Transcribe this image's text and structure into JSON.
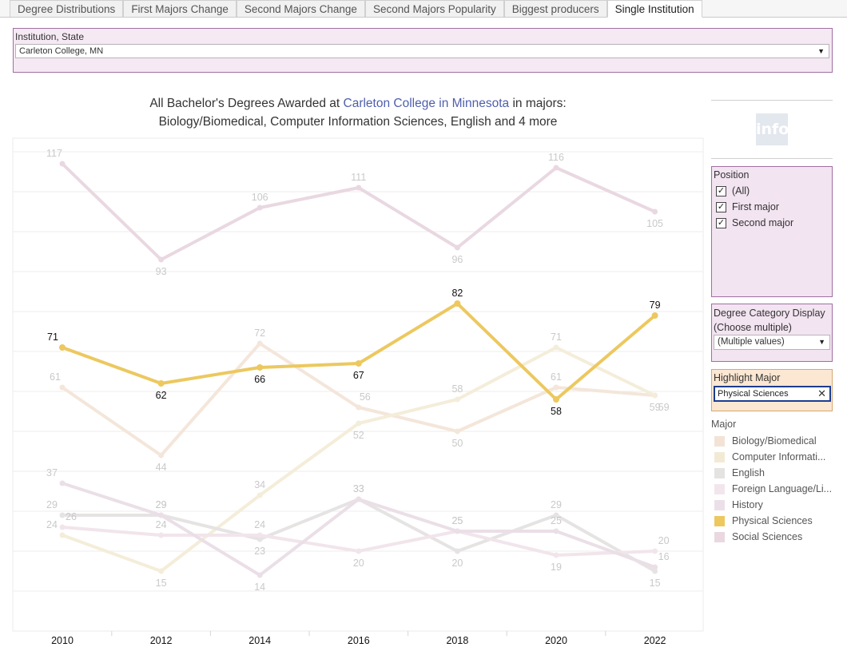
{
  "tabs": [
    {
      "label": "Degree Distributions",
      "active": false
    },
    {
      "label": "First Majors Change",
      "active": false
    },
    {
      "label": "Second Majors Change",
      "active": false
    },
    {
      "label": "Second Majors Popularity",
      "active": false
    },
    {
      "label": "Biggest producers",
      "active": false
    },
    {
      "label": "Single Institution",
      "active": true
    }
  ],
  "institution_filter": {
    "title": "Institution, State",
    "value": "Carleton College, MN"
  },
  "title": {
    "line1_prefix": "All Bachelor's Degrees Awarded at",
    "line1_highlight": "Carleton College in Minnesota",
    "line1_suffix": "in majors:",
    "line2": "Biology/Biomedical, Computer Information Sciences, English and 4 more"
  },
  "info_button": "info",
  "position_filter": {
    "title": "Position",
    "options": [
      {
        "label": "(All)",
        "checked": true
      },
      {
        "label": "First major",
        "checked": true
      },
      {
        "label": "Second major",
        "checked": true
      }
    ]
  },
  "degree_category_filter": {
    "title": "Degree Category Display (Choose multiple)",
    "value": "(Multiple values)"
  },
  "highlight_filter": {
    "title": "Highlight Major",
    "value": "Physical Sciences"
  },
  "legend": {
    "title": "Major",
    "items": [
      {
        "label": "Biology/Biomedical",
        "color": "#f3e3d6"
      },
      {
        "label": "Computer Informati...",
        "color": "#f3ead6"
      },
      {
        "label": "English",
        "color": "#e5e2e2"
      },
      {
        "label": "Foreign Language/Li...",
        "color": "#f2e6ec"
      },
      {
        "label": "History",
        "color": "#ece0e8"
      },
      {
        "label": "Physical Sciences",
        "color": "#ecc85f"
      },
      {
        "label": "Social Sciences",
        "color": "#ead8e0"
      }
    ]
  },
  "chart_data": {
    "type": "line",
    "x": [
      2010,
      2012,
      2014,
      2016,
      2018,
      2020,
      2022
    ],
    "ylim": [
      0,
      123
    ],
    "grid": true,
    "highlight": "Physical Sciences",
    "series": [
      {
        "name": "Social Sciences",
        "color": "#e9d8e1",
        "values": [
          117,
          93,
          106,
          111,
          96,
          116,
          105
        ]
      },
      {
        "name": "Biology/Biomedical",
        "color": "#f4e6da",
        "values": [
          61,
          44,
          72,
          56,
          50,
          61,
          59
        ]
      },
      {
        "name": "Computer Information Sciences",
        "color": "#f4edd9",
        "values": [
          24,
          15,
          34,
          52,
          58,
          71,
          59
        ]
      },
      {
        "name": "English",
        "color": "#e6e3e3",
        "values": [
          29,
          29,
          23,
          33,
          20,
          29,
          15
        ]
      },
      {
        "name": "Foreign Language/Literature",
        "color": "#f1e5eb",
        "values": [
          26,
          24,
          24,
          20,
          25,
          19,
          20
        ]
      },
      {
        "name": "History",
        "color": "#ebdfe7",
        "values": [
          37,
          29,
          14,
          33,
          25,
          25,
          16
        ]
      },
      {
        "name": "Physical Sciences",
        "color": "#ecc85f",
        "values": [
          71,
          62,
          66,
          67,
          82,
          58,
          79
        ]
      }
    ]
  }
}
